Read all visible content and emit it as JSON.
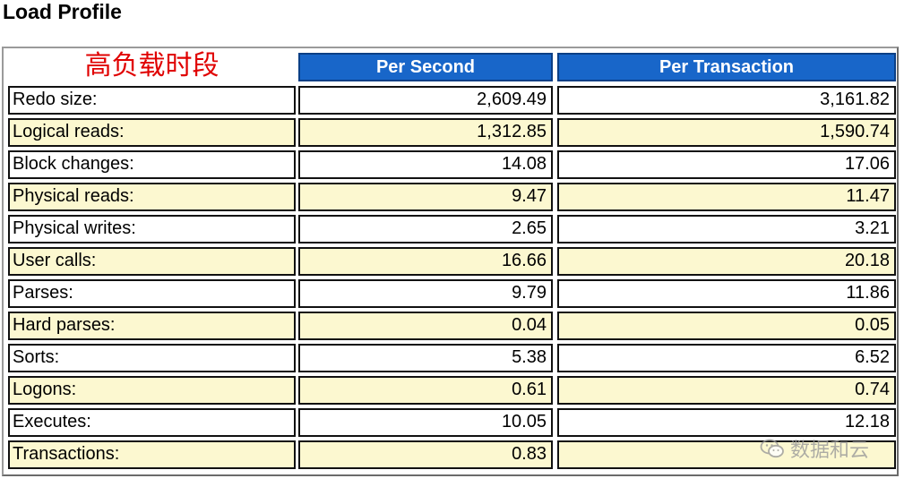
{
  "title": "Load Profile",
  "annotation": "高负载时段",
  "columns": {
    "per_second": "Per Second",
    "per_transaction": "Per Transaction"
  },
  "rows": [
    {
      "label": "Redo size:",
      "per_second": "2,609.49",
      "per_transaction": "3,161.82"
    },
    {
      "label": "Logical reads:",
      "per_second": "1,312.85",
      "per_transaction": "1,590.74"
    },
    {
      "label": "Block changes:",
      "per_second": "14.08",
      "per_transaction": "17.06"
    },
    {
      "label": "Physical reads:",
      "per_second": "9.47",
      "per_transaction": "11.47"
    },
    {
      "label": "Physical writes:",
      "per_second": "2.65",
      "per_transaction": "3.21"
    },
    {
      "label": "User calls:",
      "per_second": "16.66",
      "per_transaction": "20.18"
    },
    {
      "label": "Parses:",
      "per_second": "9.79",
      "per_transaction": "11.86"
    },
    {
      "label": "Hard parses:",
      "per_second": "0.04",
      "per_transaction": "0.05"
    },
    {
      "label": "Sorts:",
      "per_second": "5.38",
      "per_transaction": "6.52"
    },
    {
      "label": "Logons:",
      "per_second": "0.61",
      "per_transaction": "0.74"
    },
    {
      "label": "Executes:",
      "per_second": "10.05",
      "per_transaction": "12.18"
    },
    {
      "label": "Transactions:",
      "per_second": "0.83",
      "per_transaction": ""
    }
  ],
  "watermark": {
    "text": "数据和云",
    "icon": "wechat-icon"
  },
  "colors": {
    "header": "#1866c9",
    "annotation": "#e00000",
    "alt_row": "#fcf8d0"
  }
}
